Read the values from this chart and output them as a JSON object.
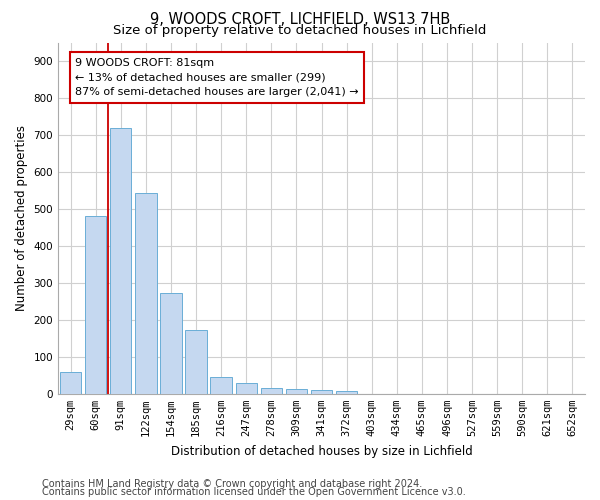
{
  "title1": "9, WOODS CROFT, LICHFIELD, WS13 7HB",
  "title2": "Size of property relative to detached houses in Lichfield",
  "xlabel": "Distribution of detached houses by size in Lichfield",
  "ylabel": "Number of detached properties",
  "categories": [
    "29sqm",
    "60sqm",
    "91sqm",
    "122sqm",
    "154sqm",
    "185sqm",
    "216sqm",
    "247sqm",
    "278sqm",
    "309sqm",
    "341sqm",
    "372sqm",
    "403sqm",
    "434sqm",
    "465sqm",
    "496sqm",
    "527sqm",
    "559sqm",
    "590sqm",
    "621sqm",
    "652sqm"
  ],
  "values": [
    58,
    480,
    720,
    543,
    272,
    172,
    45,
    30,
    15,
    13,
    9,
    8,
    0,
    0,
    0,
    0,
    0,
    0,
    0,
    0,
    0
  ],
  "bar_color": "#c5d8f0",
  "bar_edge_color": "#6aaed6",
  "annotation_line1": "9 WOODS CROFT: 81sqm",
  "annotation_line2": "← 13% of detached houses are smaller (299)",
  "annotation_line3": "87% of semi-detached houses are larger (2,041) →",
  "annotation_box_facecolor": "#ffffff",
  "annotation_box_edgecolor": "#cc0000",
  "vline_color": "#cc0000",
  "vline_x": 1.48,
  "ylim": [
    0,
    950
  ],
  "yticks": [
    0,
    100,
    200,
    300,
    400,
    500,
    600,
    700,
    800,
    900
  ],
  "footnote1": "Contains HM Land Registry data © Crown copyright and database right 2024.",
  "footnote2": "Contains public sector information licensed under the Open Government Licence v3.0.",
  "background_color": "#ffffff",
  "plot_bg_color": "#ffffff",
  "grid_color": "#d0d0d0",
  "title1_fontsize": 10.5,
  "title2_fontsize": 9.5,
  "axis_label_fontsize": 8.5,
  "tick_fontsize": 7.5,
  "annotation_fontsize": 8,
  "footnote_fontsize": 7
}
